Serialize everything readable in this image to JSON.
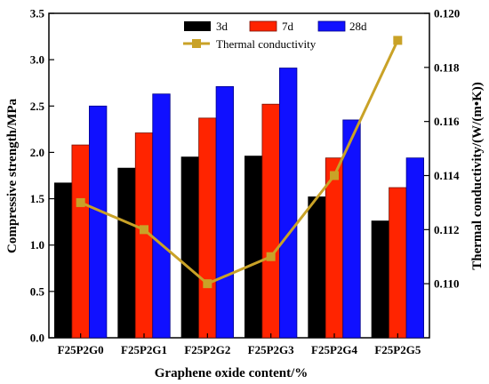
{
  "chart_data": {
    "type": "bar",
    "title": "",
    "xlabel": "Graphene oxide content/%",
    "ylabel": "Compressive strength/MPa",
    "y2label": "Thermal conductivity/(W/(m•K))",
    "categories": [
      "F25P2G0",
      "F25P2G1",
      "F25P2G2",
      "F25P2G3",
      "F25P2G4",
      "F25P2G5"
    ],
    "ylim": [
      0.0,
      3.5
    ],
    "yticks": [
      "0.0",
      "0.5",
      "1.0",
      "1.5",
      "2.0",
      "2.5",
      "3.0",
      "3.5"
    ],
    "y2lim": [
      0.108,
      0.12
    ],
    "y2ticks": [
      "0.110",
      "0.112",
      "0.114",
      "0.116",
      "0.118",
      "0.120"
    ],
    "series": [
      {
        "name": "3d",
        "values": [
          1.67,
          1.83,
          1.95,
          1.96,
          1.52,
          1.26
        ],
        "color": "#000000",
        "axis": "left",
        "kind": "bar"
      },
      {
        "name": "7d",
        "values": [
          2.08,
          2.21,
          2.37,
          2.52,
          1.94,
          1.62
        ],
        "color": "#ff2400",
        "axis": "left",
        "kind": "bar"
      },
      {
        "name": "28d",
        "values": [
          2.5,
          2.63,
          2.71,
          2.91,
          2.35,
          1.94
        ],
        "color": "#1010ff",
        "axis": "left",
        "kind": "bar"
      },
      {
        "name": "Thermal conductivity",
        "values": [
          0.113,
          0.112,
          0.11,
          0.111,
          0.114,
          0.119
        ],
        "color": "#c9a227",
        "axis": "right",
        "kind": "line"
      }
    ],
    "legend_position": "top",
    "grid": false
  }
}
